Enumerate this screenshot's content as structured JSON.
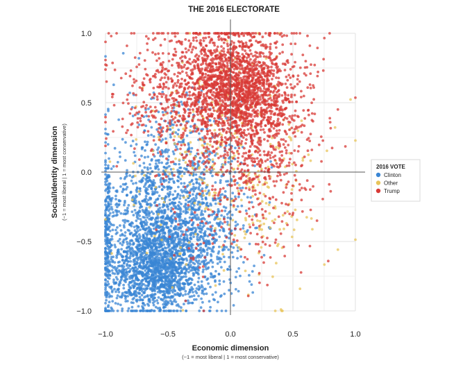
{
  "chart_data": {
    "type": "scatter",
    "title": "THE 2016 ELECTORATE",
    "xlabel": "Economic dimension",
    "xlabel_sub": "(−1 = most liberal | 1 = most conservative)",
    "ylabel": "Social/Identity dimension",
    "ylabel_sub": "(−1 = most liberal | 1 = most conservative)",
    "xlim": [
      -1.0,
      1.0
    ],
    "ylim": [
      -1.0,
      1.0
    ],
    "x_ticks": [
      -1.0,
      -0.5,
      0.0,
      0.5,
      1.0
    ],
    "x_tick_labels": [
      "−1.0",
      "−0.5",
      "0.0",
      "0.5",
      "1.0"
    ],
    "y_ticks": [
      -1.0,
      -0.5,
      0.0,
      0.5,
      1.0
    ],
    "y_tick_labels": [
      "−1.0",
      "−0.5",
      "0.0",
      "0.5",
      "1.0"
    ],
    "grid": true,
    "legend": {
      "title": "2016 VOTE",
      "placement": "right",
      "entries": [
        {
          "name": "Clinton",
          "color": "#3a86d4"
        },
        {
          "name": "Other",
          "color": "#e8c45a"
        },
        {
          "name": "Trump",
          "color": "#d83a36"
        }
      ]
    },
    "series": [
      {
        "name": "Clinton",
        "color": "#3a86d4",
        "clusters": [
          {
            "cx": -0.62,
            "cy": -0.7,
            "sx": 0.18,
            "sy": 0.16,
            "n": 1400
          },
          {
            "cx": -0.55,
            "cy": -0.35,
            "sx": 0.25,
            "sy": 0.22,
            "n": 900
          },
          {
            "cx": -0.45,
            "cy": 0.05,
            "sx": 0.28,
            "sy": 0.25,
            "n": 450
          },
          {
            "cx": -0.2,
            "cy": -0.55,
            "sx": 0.18,
            "sy": 0.25,
            "n": 350
          },
          {
            "cx": -0.98,
            "cy": -0.5,
            "sx": 0.015,
            "sy": 0.35,
            "n": 180
          }
        ]
      },
      {
        "name": "Other",
        "color": "#e8c45a",
        "clusters": [
          {
            "cx": -0.1,
            "cy": 0.05,
            "sx": 0.35,
            "sy": 0.4,
            "n": 260
          },
          {
            "cx": 0.3,
            "cy": -0.3,
            "sx": 0.25,
            "sy": 0.35,
            "n": 90
          }
        ]
      },
      {
        "name": "Trump",
        "color": "#d83a36",
        "clusters": [
          {
            "cx": 0.05,
            "cy": 0.62,
            "sx": 0.22,
            "sy": 0.2,
            "n": 1500
          },
          {
            "cx": -0.3,
            "cy": 0.55,
            "sx": 0.3,
            "sy": 0.25,
            "n": 700
          },
          {
            "cx": 0.25,
            "cy": 0.3,
            "sx": 0.22,
            "sy": 0.3,
            "n": 450
          },
          {
            "cx": 0.05,
            "cy": -0.2,
            "sx": 0.3,
            "sy": 0.35,
            "n": 220
          }
        ]
      }
    ]
  }
}
